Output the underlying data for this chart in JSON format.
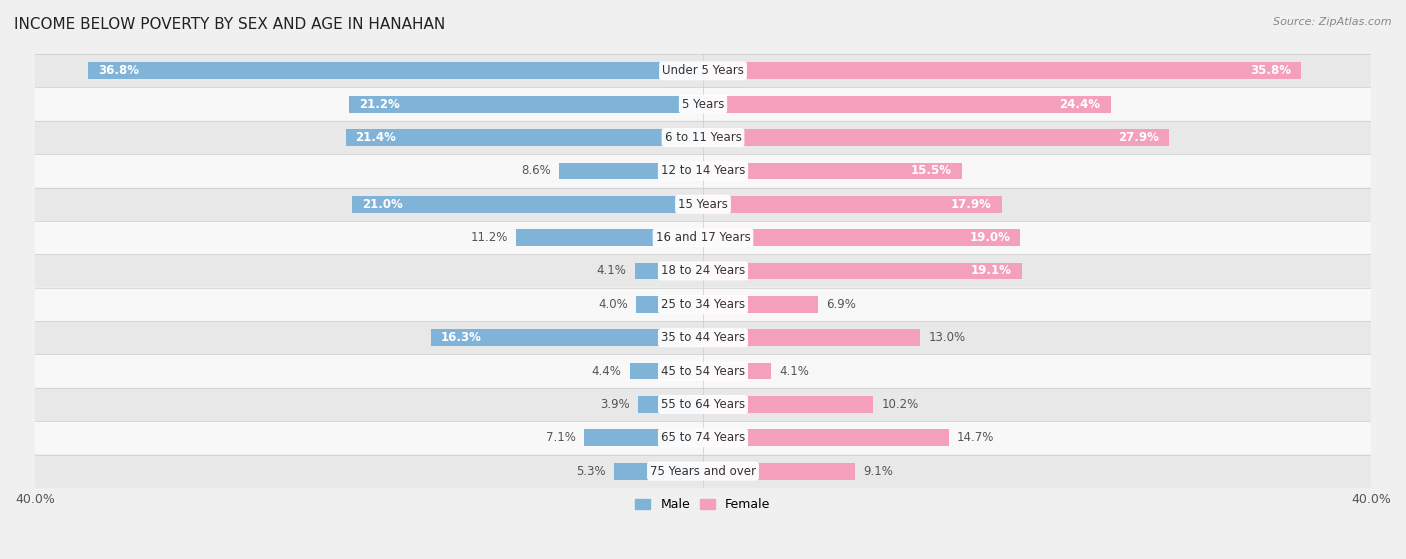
{
  "title": "INCOME BELOW POVERTY BY SEX AND AGE IN HANAHAN",
  "source": "Source: ZipAtlas.com",
  "categories": [
    "Under 5 Years",
    "5 Years",
    "6 to 11 Years",
    "12 to 14 Years",
    "15 Years",
    "16 and 17 Years",
    "18 to 24 Years",
    "25 to 34 Years",
    "35 to 44 Years",
    "45 to 54 Years",
    "55 to 64 Years",
    "65 to 74 Years",
    "75 Years and over"
  ],
  "male_values": [
    36.8,
    21.2,
    21.4,
    8.6,
    21.0,
    11.2,
    4.1,
    4.0,
    16.3,
    4.4,
    3.9,
    7.1,
    5.3
  ],
  "female_values": [
    35.8,
    24.4,
    27.9,
    15.5,
    17.9,
    19.0,
    19.1,
    6.9,
    13.0,
    4.1,
    10.2,
    14.7,
    9.1
  ],
  "male_color": "#7fb3d8",
  "female_color": "#f4a0bc",
  "male_label": "Male",
  "female_label": "Female",
  "axis_max": 40.0,
  "background_color": "#f0f0f0",
  "row_bg_light": "#f8f8f8",
  "row_bg_dark": "#e8e8e8",
  "title_fontsize": 11,
  "label_fontsize": 8.5,
  "tick_fontsize": 9,
  "source_fontsize": 8
}
